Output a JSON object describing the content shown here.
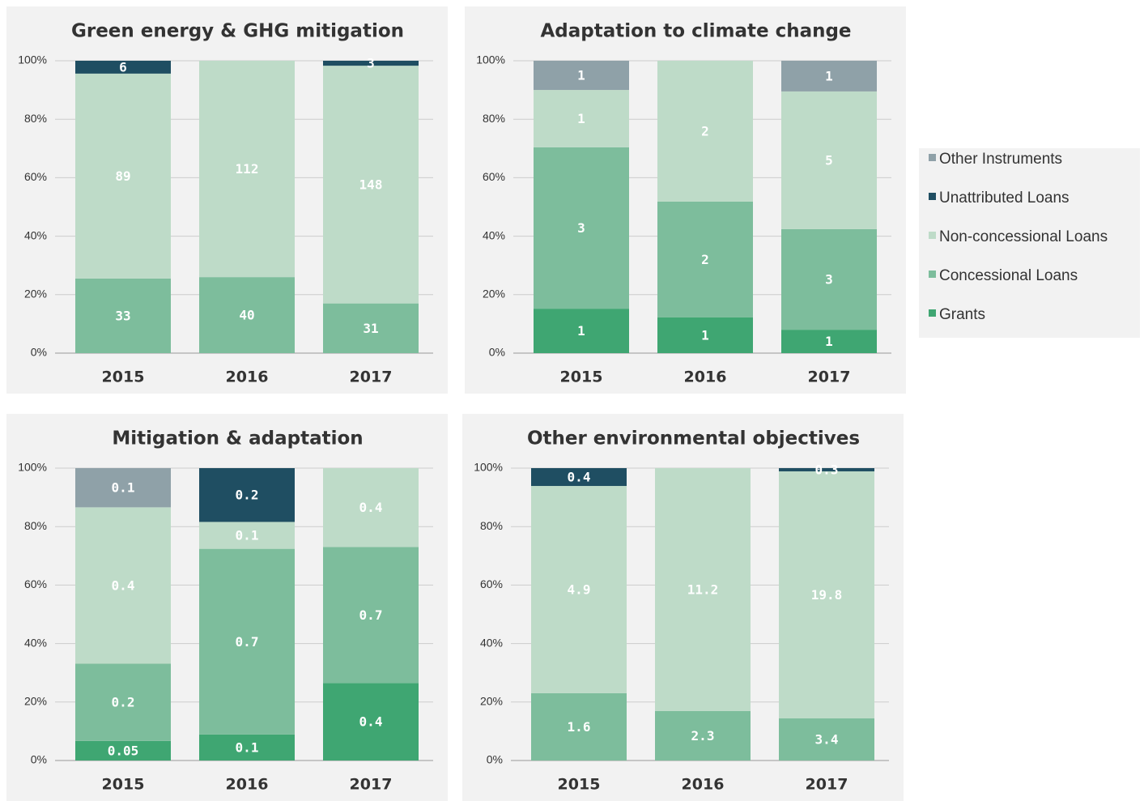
{
  "chart_data": [
    {
      "type": "bar",
      "stacking": "stacked",
      "title": "Green energy & GHG mitigation",
      "categories": [
        "2015",
        "2016",
        "2017"
      ],
      "ylim": [
        0,
        100
      ],
      "yticks": [
        {
          "value": 0,
          "label": "0%"
        },
        {
          "value": 20,
          "label": "20%"
        },
        {
          "value": 40,
          "label": "40%"
        },
        {
          "value": 60,
          "label": "60%"
        },
        {
          "value": 80,
          "label": "80%"
        },
        {
          "value": 100,
          "label": "100%"
        }
      ],
      "grid": true,
      "series": [
        {
          "name": "Grants",
          "color": "#3fa672",
          "values": [
            null,
            null,
            null
          ],
          "value_labels": [
            null,
            null,
            null
          ]
        },
        {
          "name": "Concessional Loans",
          "color": "#7dbd9c",
          "values": [
            25.5,
            26,
            17
          ],
          "value_labels": [
            "33",
            "40",
            "31"
          ]
        },
        {
          "name": "Non-concessional Loans",
          "color": "#bedbc8",
          "values": [
            70.1,
            74,
            81.3
          ],
          "value_labels": [
            "89",
            "112",
            "148"
          ]
        },
        {
          "name": "Unattributed Loans",
          "color": "#1f4e62",
          "values": [
            4.4,
            null,
            1.7
          ],
          "value_labels": [
            "6",
            null,
            "3"
          ]
        },
        {
          "name": "Other Instruments",
          "color": "#8fa1a8",
          "values": [
            null,
            null,
            null
          ],
          "value_labels": [
            null,
            null,
            null
          ]
        }
      ]
    },
    {
      "type": "bar",
      "stacking": "stacked",
      "title": "Adaptation to climate change",
      "categories": [
        "2015",
        "2016",
        "2017"
      ],
      "ylim": [
        0,
        100
      ],
      "yticks": [
        {
          "value": 0,
          "label": "0%"
        },
        {
          "value": 20,
          "label": "20%"
        },
        {
          "value": 40,
          "label": "40%"
        },
        {
          "value": 60,
          "label": "60%"
        },
        {
          "value": 80,
          "label": "80%"
        },
        {
          "value": 100,
          "label": "100%"
        }
      ],
      "grid": true,
      "series": [
        {
          "name": "Grants",
          "color": "#3fa672",
          "values": [
            15.2,
            12.2,
            8
          ],
          "value_labels": [
            "1",
            "1",
            "1"
          ]
        },
        {
          "name": "Concessional Loans",
          "color": "#7dbd9c",
          "values": [
            55.2,
            39.6,
            34.4
          ],
          "value_labels": [
            "3",
            "2",
            "3"
          ]
        },
        {
          "name": "Non-concessional Loans",
          "color": "#bedbc8",
          "values": [
            19.6,
            48.2,
            47.1
          ],
          "value_labels": [
            "1",
            "2",
            "5"
          ]
        },
        {
          "name": "Unattributed Loans",
          "color": "#1f4e62",
          "values": [
            null,
            null,
            null
          ],
          "value_labels": [
            null,
            null,
            null
          ]
        },
        {
          "name": "Other Instruments",
          "color": "#8fa1a8",
          "values": [
            10,
            null,
            10.5
          ],
          "value_labels": [
            "1",
            null,
            "1"
          ]
        }
      ]
    },
    {
      "type": "bar",
      "stacking": "stacked",
      "title": "Mitigation & adaptation",
      "categories": [
        "2015",
        "2016",
        "2017"
      ],
      "ylim": [
        0,
        100
      ],
      "yticks": [
        {
          "value": 0,
          "label": "0%"
        },
        {
          "value": 20,
          "label": "20%"
        },
        {
          "value": 40,
          "label": "40%"
        },
        {
          "value": 60,
          "label": "60%"
        },
        {
          "value": 80,
          "label": "80%"
        },
        {
          "value": 100,
          "label": "100%"
        }
      ],
      "grid": true,
      "series": [
        {
          "name": "Grants",
          "color": "#3fa672",
          "values": [
            6.7,
            8.9,
            26.5
          ],
          "value_labels": [
            "0.05",
            "0.1",
            "0.4"
          ]
        },
        {
          "name": "Concessional Loans",
          "color": "#7dbd9c",
          "values": [
            26.4,
            63.5,
            46.5
          ],
          "value_labels": [
            "0.2",
            "0.7",
            "0.7"
          ]
        },
        {
          "name": "Non-concessional Loans",
          "color": "#bedbc8",
          "values": [
            53.5,
            9.2,
            27
          ],
          "value_labels": [
            "0.4",
            "0.1",
            "0.4"
          ]
        },
        {
          "name": "Unattributed Loans",
          "color": "#1f4e62",
          "values": [
            null,
            18.4,
            null
          ],
          "value_labels": [
            null,
            "0.2",
            null
          ]
        },
        {
          "name": "Other Instruments",
          "color": "#8fa1a8",
          "values": [
            13.4,
            null,
            null
          ],
          "value_labels": [
            "0.1",
            null,
            null
          ]
        }
      ]
    },
    {
      "type": "bar",
      "stacking": "stacked",
      "title": "Other environmental objectives",
      "categories": [
        "2015",
        "2016",
        "2017"
      ],
      "ylim": [
        0,
        100
      ],
      "yticks": [
        {
          "value": 0,
          "label": "0%"
        },
        {
          "value": 20,
          "label": "20%"
        },
        {
          "value": 40,
          "label": "40%"
        },
        {
          "value": 60,
          "label": "60%"
        },
        {
          "value": 80,
          "label": "80%"
        },
        {
          "value": 100,
          "label": "100%"
        }
      ],
      "grid": true,
      "series": [
        {
          "name": "Grants",
          "color": "#3fa672",
          "values": [
            null,
            null,
            null
          ],
          "value_labels": [
            null,
            null,
            null
          ]
        },
        {
          "name": "Concessional Loans",
          "color": "#7dbd9c",
          "values": [
            23,
            16.9,
            14.4
          ],
          "value_labels": [
            "1.6",
            "2.3",
            "3.4"
          ]
        },
        {
          "name": "Non-concessional Loans",
          "color": "#bedbc8",
          "values": [
            70.9,
            83.1,
            84.5
          ],
          "value_labels": [
            "4.9",
            "11.2",
            "19.8"
          ]
        },
        {
          "name": "Unattributed Loans",
          "color": "#1f4e62",
          "values": [
            6.1,
            null,
            1.1
          ],
          "value_labels": [
            "0.4",
            null,
            "0.3"
          ]
        },
        {
          "name": "Other Instruments",
          "color": "#8fa1a8",
          "values": [
            null,
            null,
            null
          ],
          "value_labels": [
            null,
            null,
            null
          ]
        }
      ]
    }
  ]
}
